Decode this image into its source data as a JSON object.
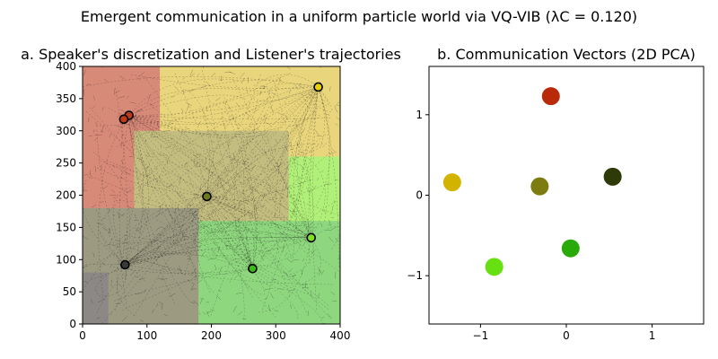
{
  "figure": {
    "suptitle": "Emergent communication in a uniform particle world via VQ-VIB (λC = 0.120)"
  },
  "chart_data": [
    {
      "panel": "a",
      "type": "heatmap",
      "title": "a. Speaker's discretization and Listener's trajectories",
      "xlabel": "",
      "ylabel": "",
      "xlim": [
        0,
        400
      ],
      "ylim": [
        0,
        400
      ],
      "xticks": [
        0,
        100,
        200,
        300,
        400
      ],
      "yticks": [
        0,
        50,
        100,
        150,
        200,
        250,
        300,
        350,
        400
      ],
      "grid": false,
      "region_colors": {
        "red": "#d88a79",
        "yellow": "#e8d57c",
        "olive": "#c4bd80",
        "light_green": "#b0ef78",
        "green": "#8fd77f",
        "gray_green": "#9c9b82",
        "dark_gray": "#8c8886"
      },
      "regions": [
        {
          "color": "red",
          "x": [
            0,
            160
          ],
          "y": [
            140,
            400
          ]
        },
        {
          "color": "yellow",
          "x": [
            120,
            400
          ],
          "y": [
            250,
            400
          ]
        },
        {
          "color": "olive",
          "x": [
            80,
            320
          ],
          "y": [
            100,
            300
          ]
        },
        {
          "color": "light_green",
          "x": [
            320,
            400
          ],
          "y": [
            40,
            260
          ]
        },
        {
          "color": "green",
          "x": [
            180,
            400
          ],
          "y": [
            0,
            160
          ]
        },
        {
          "color": "gray_green",
          "x": [
            0,
            180
          ],
          "y": [
            0,
            180
          ]
        },
        {
          "color": "dark_gray",
          "x": [
            0,
            40
          ],
          "y": [
            0,
            80
          ]
        }
      ],
      "targets": [
        {
          "x": 366,
          "y": 368,
          "color": "#e8d000"
        },
        {
          "x": 72,
          "y": 324,
          "color": "#c03a1a"
        },
        {
          "x": 64,
          "y": 318,
          "color": "#c03a1a"
        },
        {
          "x": 193,
          "y": 198,
          "color": "#6b7a1a"
        },
        {
          "x": 355,
          "y": 134,
          "color": "#7fe020"
        },
        {
          "x": 264,
          "y": 86,
          "color": "#3cb81a"
        },
        {
          "x": 66,
          "y": 92,
          "color": "#3a3a3a"
        }
      ],
      "trajectory_endpoints": [
        {
          "x": 366,
          "y": 368
        },
        {
          "x": 72,
          "y": 324
        },
        {
          "x": 193,
          "y": 198
        },
        {
          "x": 355,
          "y": 134
        },
        {
          "x": 264,
          "y": 86
        },
        {
          "x": 66,
          "y": 92
        }
      ]
    },
    {
      "panel": "b",
      "type": "scatter",
      "title": "b. Communication Vectors (2D PCA)",
      "xlabel": "",
      "ylabel": "",
      "xlim": [
        -1.6,
        1.6
      ],
      "ylim": [
        -1.6,
        1.6
      ],
      "xticks": [
        -1,
        0,
        1
      ],
      "yticks": [
        -1,
        0,
        1
      ],
      "xtick_labels": [
        "−1",
        "0",
        "1"
      ],
      "ytick_labels": [
        "−1",
        "0",
        "1"
      ],
      "grid": false,
      "points": [
        {
          "x": -0.18,
          "y": 1.23,
          "color": "#b82a08"
        },
        {
          "x": -1.33,
          "y": 0.16,
          "color": "#d2b400"
        },
        {
          "x": -0.31,
          "y": 0.11,
          "color": "#7c7c10"
        },
        {
          "x": 0.54,
          "y": 0.23,
          "color": "#2e3a08"
        },
        {
          "x": 0.05,
          "y": -0.66,
          "color": "#2aaa0a"
        },
        {
          "x": -0.84,
          "y": -0.89,
          "color": "#66e010"
        }
      ]
    }
  ]
}
